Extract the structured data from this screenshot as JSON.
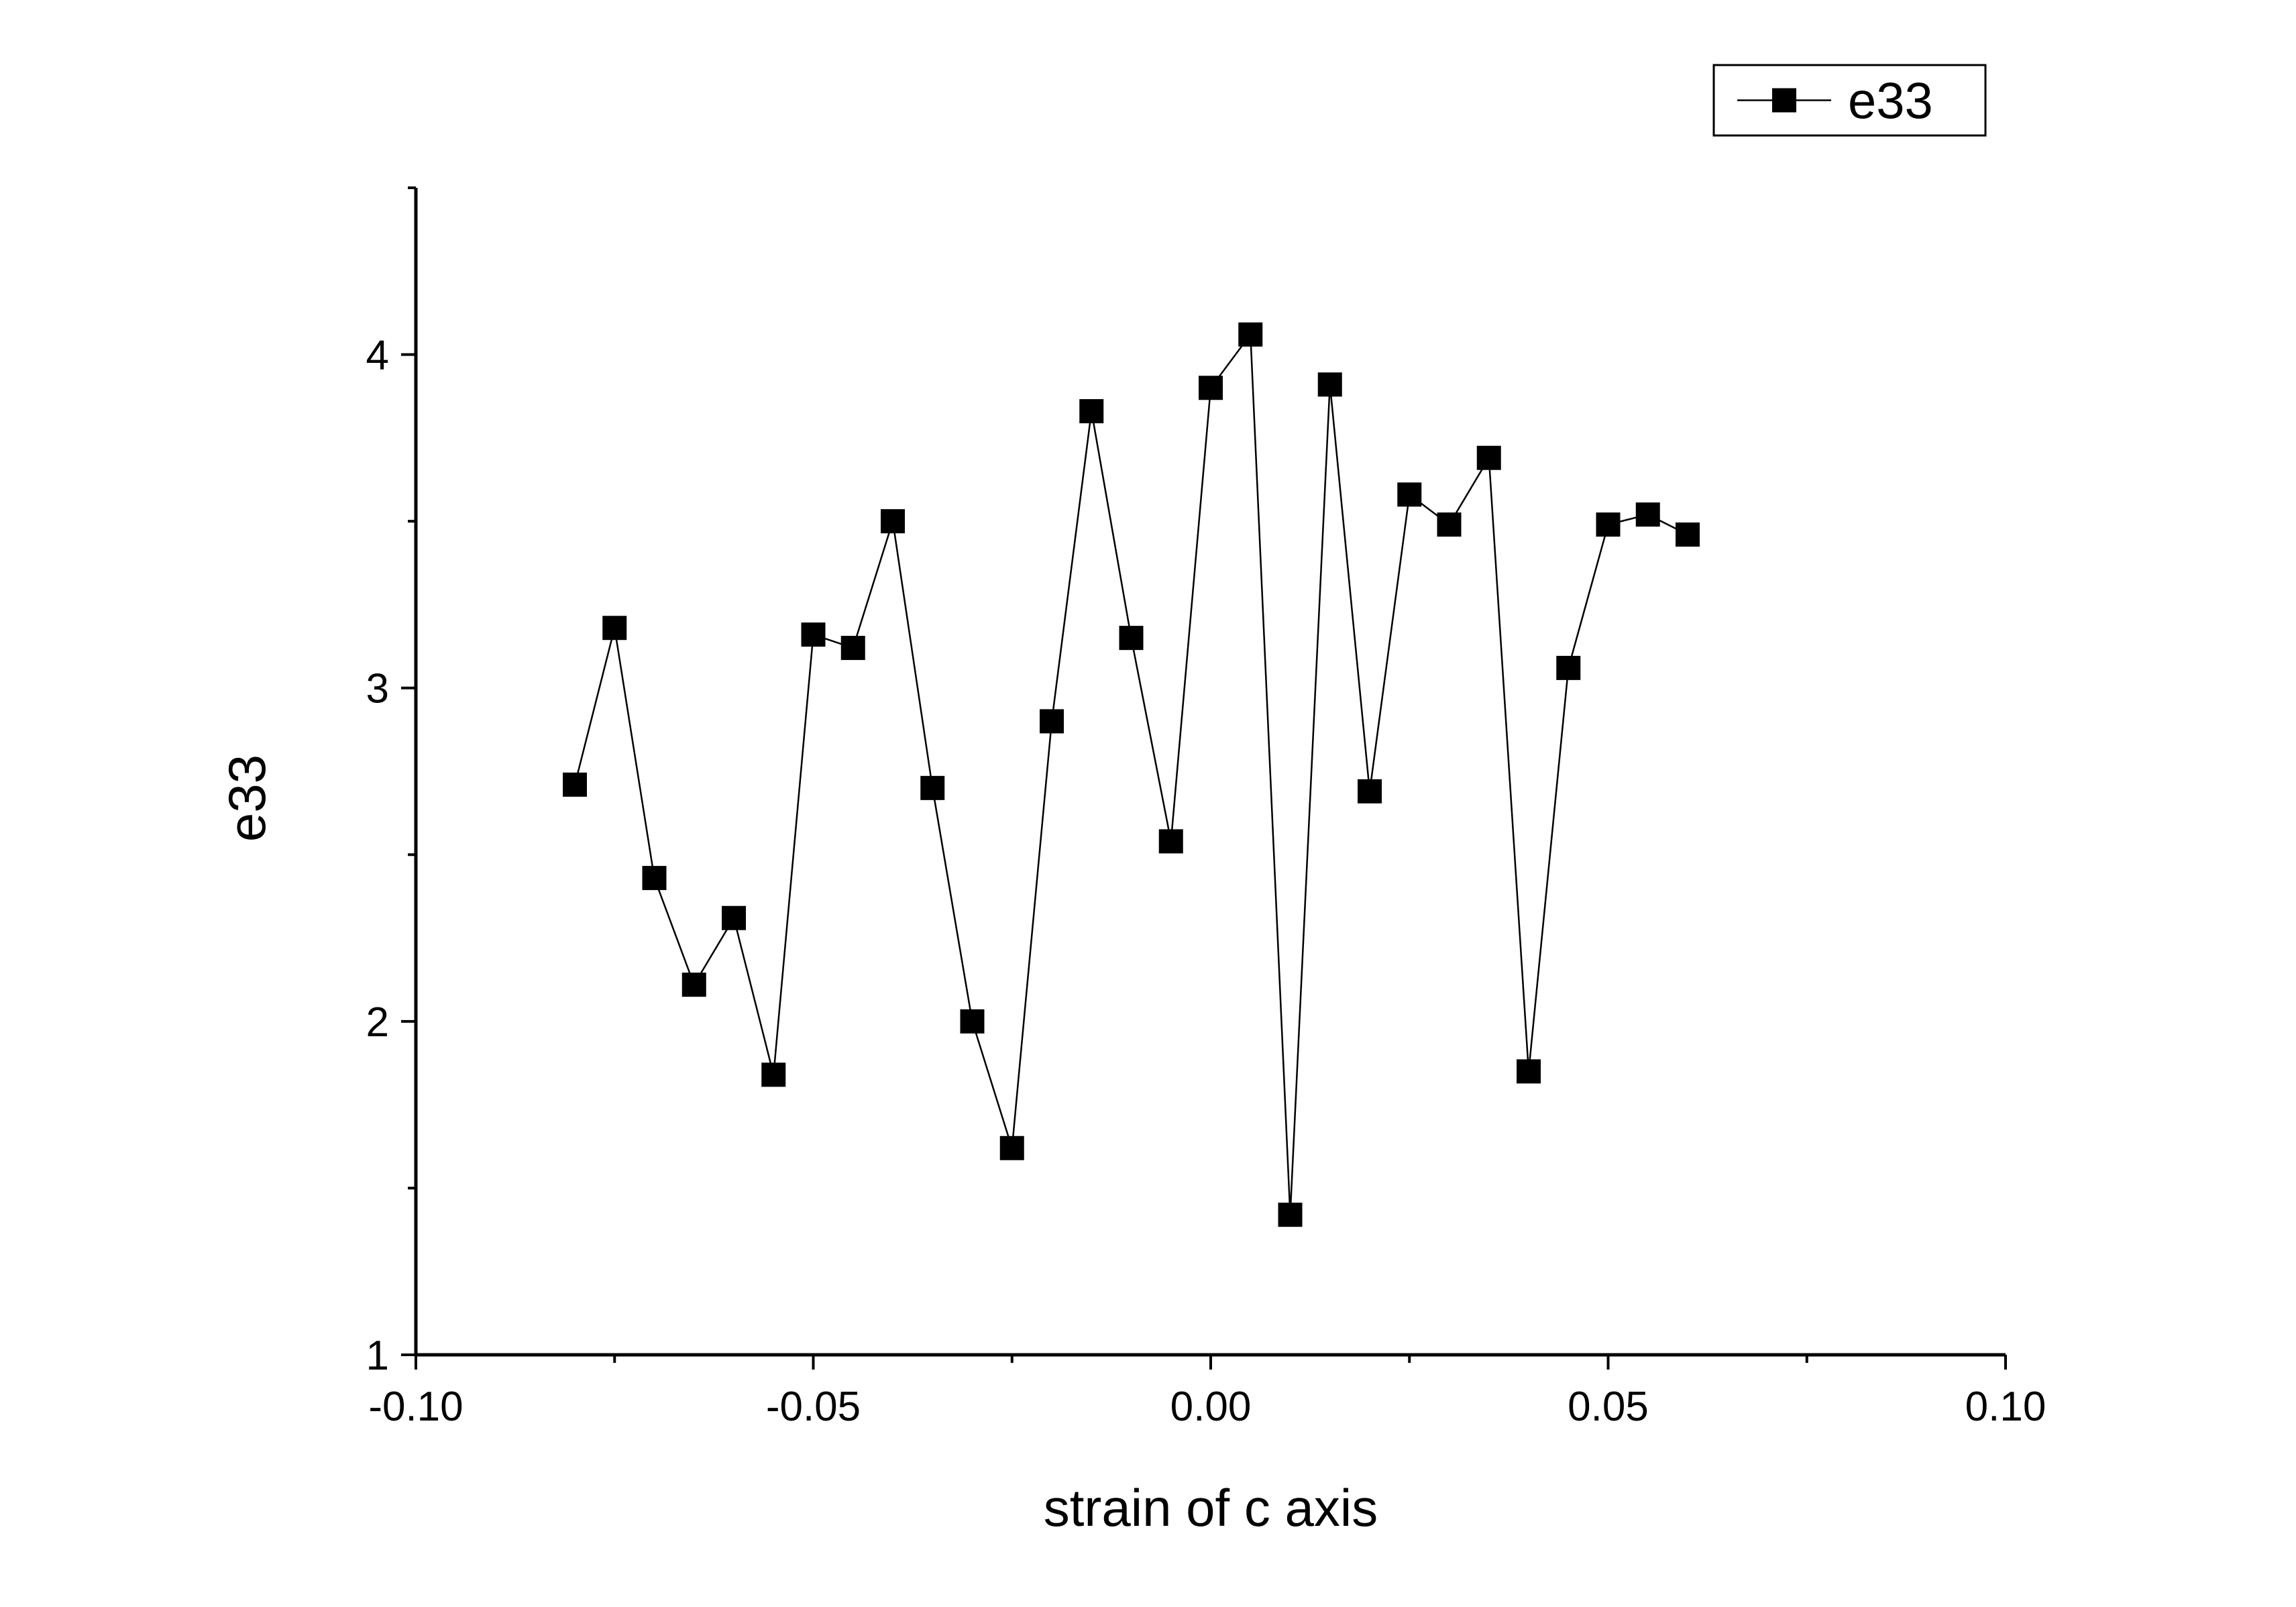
{
  "chart_data": {
    "type": "line",
    "title": "",
    "xlabel": "strain of c axis",
    "ylabel": "e33",
    "xlim": [
      -0.1,
      0.1
    ],
    "ylim": [
      1,
      4.5
    ],
    "x_ticks": [
      -0.1,
      -0.05,
      0.0,
      0.05,
      0.1
    ],
    "x_tick_labels": [
      "-0.10",
      "-0.05",
      "0.00",
      "0.05",
      "0.10"
    ],
    "x_minor_ticks": [
      -0.075,
      -0.025,
      0.025,
      0.075
    ],
    "y_ticks": [
      1,
      2,
      3,
      4
    ],
    "y_tick_labels": [
      "1",
      "2",
      "3",
      "4"
    ],
    "y_minor_ticks": [
      1.5,
      2.5,
      3.5,
      4.5
    ],
    "grid": false,
    "legend_position": "top-right",
    "marker": "square",
    "colors": {
      "line": "#000000",
      "marker": "#000000",
      "axis": "#000000",
      "background": "#ffffff"
    },
    "series": [
      {
        "name": "e33",
        "x": [
          -0.08,
          -0.075,
          -0.07,
          -0.065,
          -0.06,
          -0.055,
          -0.05,
          -0.045,
          -0.04,
          -0.035,
          -0.03,
          -0.025,
          -0.02,
          -0.015,
          -0.01,
          -0.005,
          0.0,
          0.005,
          0.01,
          0.015,
          0.02,
          0.025,
          0.03,
          0.035,
          0.04,
          0.045,
          0.05,
          0.055,
          0.06
        ],
        "y": [
          2.71,
          3.18,
          2.43,
          2.11,
          2.31,
          1.84,
          3.16,
          3.12,
          3.5,
          2.7,
          2.0,
          1.62,
          2.9,
          3.83,
          3.15,
          2.54,
          3.9,
          4.06,
          1.42,
          3.91,
          2.69,
          3.58,
          3.49,
          3.69,
          1.85,
          3.06,
          3.49,
          3.52,
          3.46
        ]
      }
    ]
  }
}
